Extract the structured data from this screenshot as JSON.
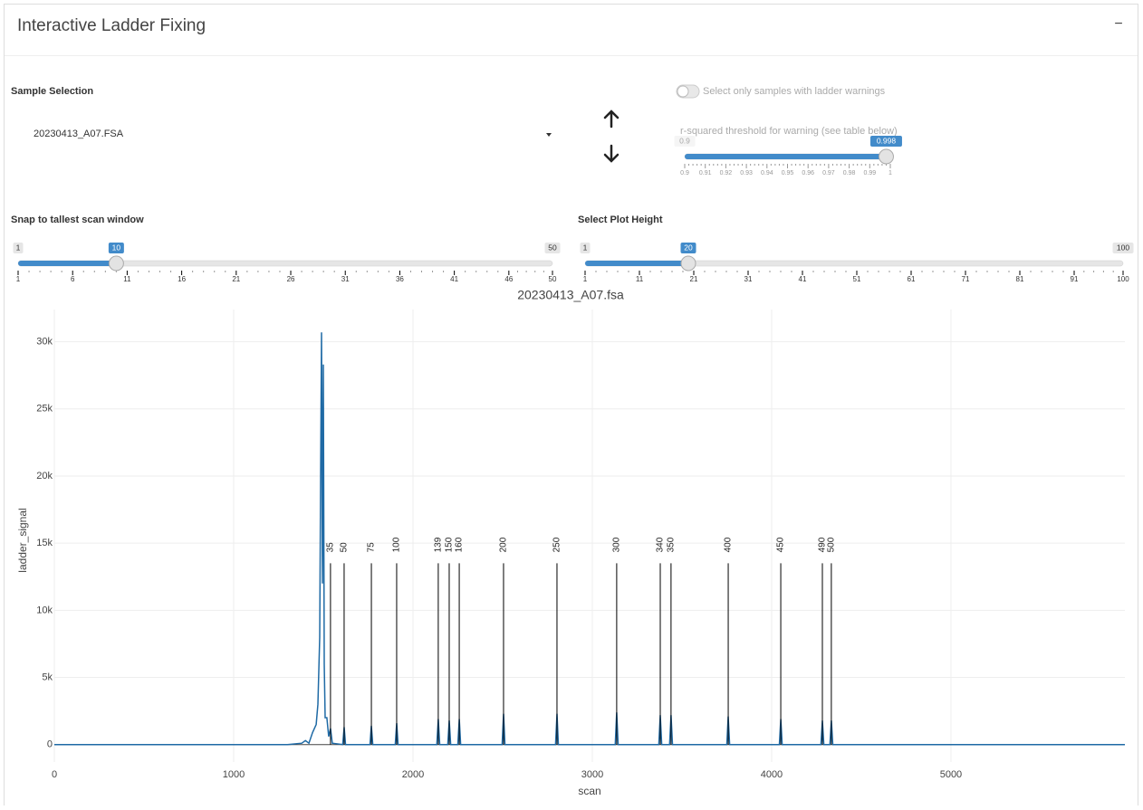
{
  "header": {
    "title": "Interactive Ladder Fixing",
    "collapse": "−"
  },
  "sample_selection": {
    "label": "Sample Selection",
    "value": "20230413_A07.FSA"
  },
  "warning_toggle": {
    "label": "Select only samples with ladder warnings"
  },
  "rsq_slider": {
    "label": "r-squared threshold for warning (see table below)",
    "min": 0.9,
    "max": 1,
    "value": 0.998,
    "ticks": [
      0.9,
      0.91,
      0.92,
      0.93,
      0.94,
      0.95,
      0.96,
      0.97,
      0.98,
      0.99,
      1
    ]
  },
  "snap_slider": {
    "label": "Snap to tallest scan window",
    "min": 1,
    "max": 50,
    "value": 10,
    "ticks": [
      1,
      6,
      11,
      16,
      21,
      26,
      31,
      36,
      41,
      46,
      50
    ]
  },
  "height_slider": {
    "label": "Select Plot Height",
    "min": 1,
    "max": 100,
    "value": 20,
    "ticks": [
      1,
      11,
      21,
      31,
      41,
      51,
      61,
      71,
      81,
      91,
      100
    ]
  },
  "chart_data": {
    "type": "line",
    "title": "20230413_A07.fsa",
    "x_label": "scan",
    "y_label": "ladder_signal",
    "xlim": [
      0,
      5970
    ],
    "xticks": [
      0,
      1000,
      2000,
      3000,
      4000,
      5000
    ],
    "ylim": [
      -1300,
      32400
    ],
    "yticks": [
      0,
      {
        "value": 5000,
        "label": "5k"
      },
      {
        "value": 10000,
        "label": "10k"
      },
      {
        "value": 15000,
        "label": "15k"
      },
      {
        "value": 20000,
        "label": "20k"
      },
      {
        "value": 25000,
        "label": "25k"
      },
      {
        "value": 30000,
        "label": "30k"
      }
    ],
    "grid": true,
    "x": [
      0,
      1300,
      1380,
      1400,
      1420,
      1440,
      1460,
      1470,
      1480,
      1485,
      1490,
      1495,
      1500,
      1505,
      1510,
      1520,
      1530,
      1540,
      1550,
      1608,
      1616,
      1624,
      1760,
      1768,
      1776,
      1901,
      1909,
      1917,
      2133,
      2141,
      2149,
      2194,
      2202,
      2210,
      2250,
      2258,
      2266,
      2497,
      2505,
      2513,
      2795,
      2803,
      2811,
      3128,
      3136,
      3144,
      3371,
      3379,
      3387,
      3431,
      3439,
      3447,
      3750,
      3758,
      3766,
      4043,
      4051,
      4059,
      4275,
      4283,
      4291,
      4325,
      4333,
      4341,
      5970
    ],
    "series": [
      {
        "color": "#1f6aa5",
        "values": [
          0,
          0,
          100,
          300,
          100,
          900,
          1500,
          3000,
          8000,
          20000,
          30700,
          12000,
          28300,
          6000,
          2000,
          2000,
          600,
          1200,
          100,
          0,
          1300,
          0,
          0,
          1400,
          0,
          0,
          1600,
          0,
          0,
          1900,
          0,
          0,
          1800,
          0,
          0,
          1900,
          0,
          0,
          2300,
          0,
          0,
          2300,
          0,
          0,
          2400,
          0,
          0,
          2200,
          0,
          0,
          2200,
          0,
          0,
          2100,
          0,
          0,
          1900,
          0,
          0,
          1800,
          0,
          0,
          1800,
          0,
          0
        ]
      }
    ],
    "ladder": {
      "top": 13500,
      "x": [
        1540,
        1616,
        1768,
        1909,
        2141,
        2202,
        2258,
        2505,
        2803,
        3136,
        3379,
        3439,
        3758,
        4051,
        4283,
        4333
      ],
      "labels": [
        35,
        50,
        75,
        100,
        139,
        150,
        160,
        200,
        250,
        300,
        340,
        350,
        400,
        450,
        490,
        500
      ]
    }
  }
}
